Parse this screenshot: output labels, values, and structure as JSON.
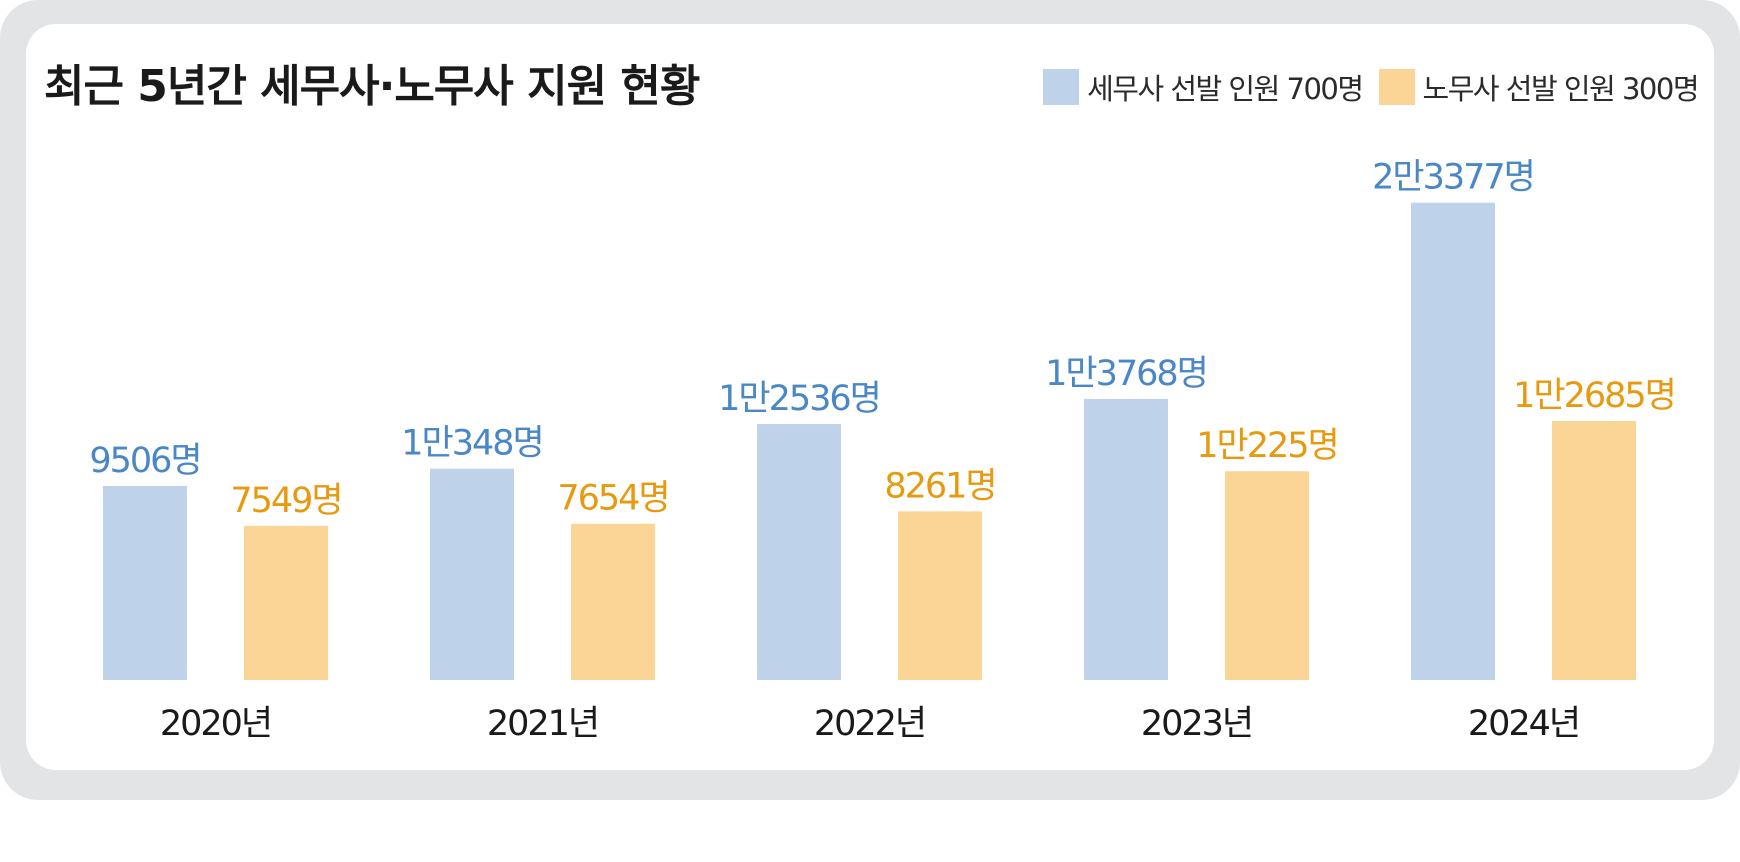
{
  "colors": {
    "series_tax": "#bed2ea",
    "series_labor": "#fad596",
    "label_tax": "#4a87c7",
    "label_labor": "#e79a10"
  },
  "chart_data": {
    "type": "bar",
    "title": "최근 5년간 세무사·노무사 지원 현황",
    "categories": [
      "2020년",
      "2021년",
      "2022년",
      "2023년",
      "2024년"
    ],
    "series": [
      {
        "name": "세무사 선발 인원 700명",
        "values": [
          9506,
          10348,
          12536,
          13768,
          23377
        ],
        "labels": [
          "9506명",
          "1만348명",
          "1만2536명",
          "1만3768명",
          "2만3377명"
        ]
      },
      {
        "name": "노무사 선발 인원 300명",
        "values": [
          7549,
          7654,
          8261,
          10225,
          12685
        ],
        "labels": [
          "7549명",
          "7654명",
          "8261명",
          "1만225명",
          "1만2685명"
        ]
      }
    ],
    "ylim": [
      0,
      24000
    ],
    "grid": false,
    "legend": "top-right"
  }
}
